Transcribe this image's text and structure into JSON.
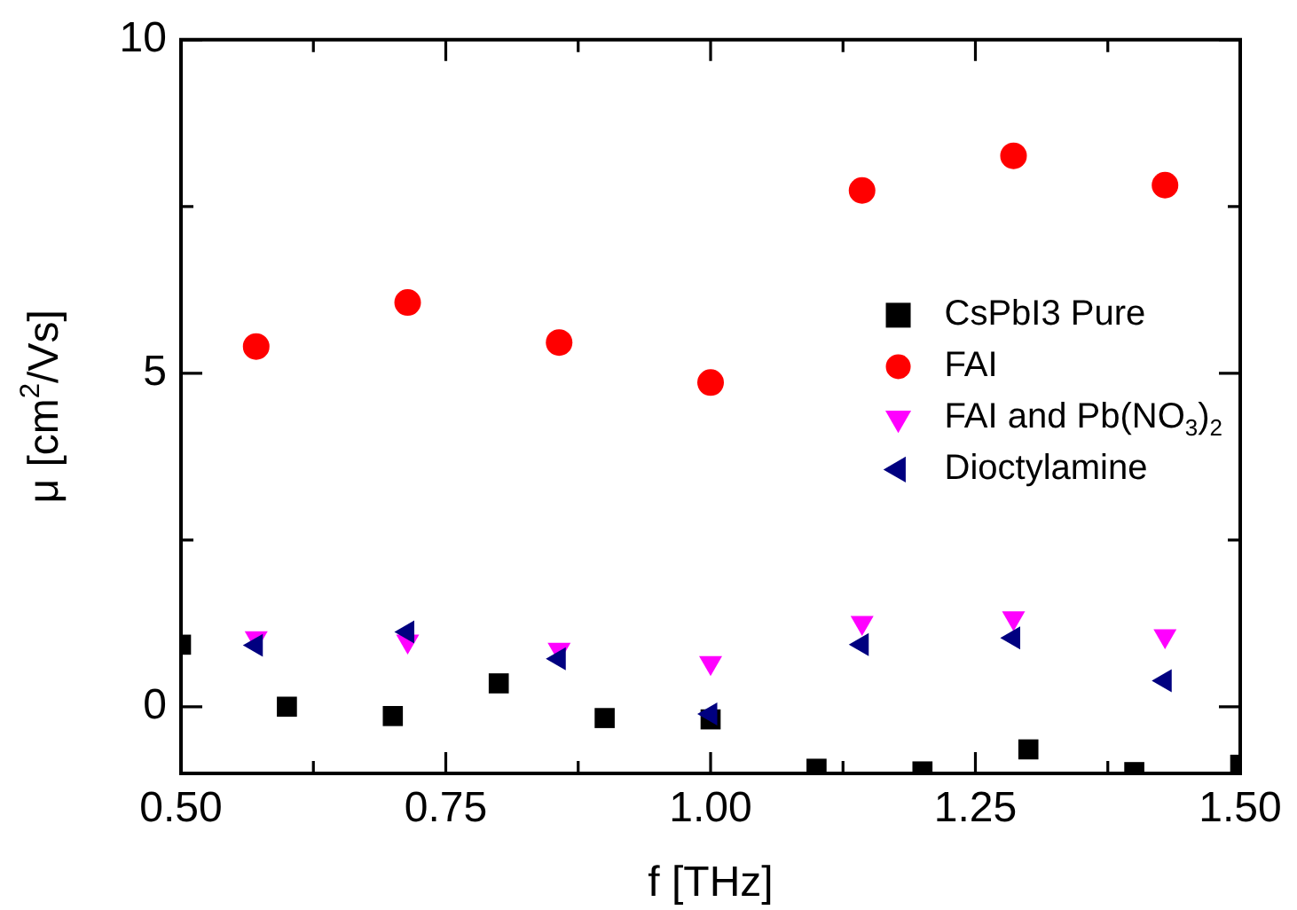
{
  "chart_data": {
    "type": "scatter",
    "xlabel": "f [THz]",
    "ylabel": "μ [cm$^{2}$/Vs]",
    "xlim": [
      0.5,
      1.5
    ],
    "ylim": [
      -1,
      10
    ],
    "xticks": [
      {
        "value": 0.5,
        "label": "0.50"
      },
      {
        "value": 0.625,
        "label": null
      },
      {
        "value": 0.75,
        "label": "0.75"
      },
      {
        "value": 0.875,
        "label": null
      },
      {
        "value": 1.0,
        "label": "1.00"
      },
      {
        "value": 1.125,
        "label": null
      },
      {
        "value": 1.25,
        "label": "1.25"
      },
      {
        "value": 1.375,
        "label": null
      },
      {
        "value": 1.5,
        "label": "1.50"
      }
    ],
    "yticks": [
      0,
      {
        "value": 2.5,
        "label": null
      },
      5,
      {
        "value": 7.5,
        "label": null
      },
      10
    ],
    "grid": false,
    "legend": "right",
    "series": [
      {
        "name": "CsPbI3 Pure",
        "color": "#000000",
        "marker": "square",
        "x": [
          0.5,
          0.6,
          0.7,
          0.8,
          0.9,
          1.0,
          1.1,
          1.2,
          1.3,
          1.4,
          1.5
        ],
        "values": [
          0.93,
          0.0,
          -0.14,
          0.35,
          -0.17,
          -0.19,
          -0.93,
          -0.97,
          -0.64,
          -0.98,
          -0.87
        ]
      },
      {
        "name": "FAI",
        "color": "#ff0000",
        "marker": "circle",
        "x": [
          0.571,
          0.714,
          0.857,
          1.0,
          1.143,
          1.286,
          1.429
        ],
        "values": [
          5.4,
          6.06,
          5.46,
          4.86,
          7.74,
          8.26,
          7.82
        ]
      },
      {
        "name": "FAI and Pb(NO$_{3}$)$_{2}$",
        "color": "#ff00ff",
        "marker": "triangle-down",
        "x": [
          0.571,
          0.714,
          0.857,
          1.0,
          1.143,
          1.286,
          1.429
        ],
        "values": [
          1.03,
          0.98,
          0.86,
          0.66,
          1.26,
          1.33,
          1.06
        ]
      },
      {
        "name": "Dioctylamine",
        "color": "#000080",
        "marker": "triangle-left",
        "x": [
          0.571,
          0.714,
          0.857,
          1.0,
          1.143,
          1.286,
          1.429
        ],
        "values": [
          0.92,
          1.12,
          0.72,
          -0.11,
          0.93,
          1.03,
          0.39
        ]
      }
    ]
  }
}
